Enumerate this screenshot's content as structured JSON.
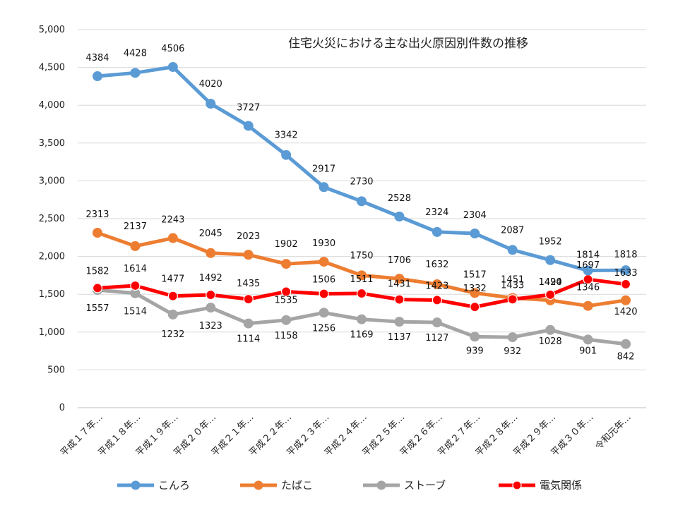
{
  "chart_data": {
    "type": "line",
    "title": "住宅火災における主な出火原因別件数の推移",
    "categories": [
      "平成１７年…",
      "平成１８年…",
      "平成１９年…",
      "平成２０年…",
      "平成２１年…",
      "平成２２年…",
      "平成２３年…",
      "平成２４年…",
      "平成２５年…",
      "平成２６年…",
      "平成２７年…",
      "平成２８年…",
      "平成２９年…",
      "平成３０年…",
      "令和元年…"
    ],
    "ylim": [
      0,
      5000
    ],
    "yticks": [
      "0",
      "500",
      "1,000",
      "1,500",
      "2,000",
      "2,500",
      "3,000",
      "3,500",
      "4,000",
      "4,500",
      "5,000"
    ],
    "grid": true,
    "legend_position": "bottom",
    "series": [
      {
        "name": "こんろ",
        "color": "#5b9bd5",
        "values": [
          4384,
          4428,
          4506,
          4020,
          3727,
          3342,
          2917,
          2730,
          2528,
          2324,
          2304,
          2087,
          1952,
          1814,
          1818
        ],
        "labels": [
          "4384",
          "4428",
          "4506",
          "4020",
          "3727",
          "3342",
          "2917",
          "2730",
          "2528",
          "2324",
          "2304",
          "2087",
          "1952",
          "1814",
          "1818"
        ]
      },
      {
        "name": "たばこ",
        "color": "#ed7d31",
        "values": [
          2313,
          2137,
          2243,
          2045,
          2023,
          1902,
          1930,
          1750,
          1706,
          1632,
          1517,
          1451,
          1420,
          1346,
          1420
        ],
        "labels": [
          "2313",
          "2137",
          "2243",
          "2045",
          "2023",
          "1902",
          "1930",
          "1750",
          "1706",
          "1632",
          "1517",
          "1451",
          "1420",
          "1346",
          "1420"
        ]
      },
      {
        "name": "ストーブ",
        "color": "#a5a5a5",
        "values": [
          1557,
          1514,
          1232,
          1323,
          1114,
          1158,
          1256,
          1169,
          1137,
          1127,
          939,
          932,
          1028,
          901,
          842
        ],
        "labels": [
          "1557",
          "1514",
          "1232",
          "1323",
          "1114",
          "1158",
          "1256",
          "1169",
          "1137",
          "1127",
          "939",
          "932",
          "1028",
          "901",
          "842"
        ]
      },
      {
        "name": "電気関係",
        "color": "#ff0000",
        "values": [
          1582,
          1614,
          1477,
          1492,
          1435,
          1535,
          1506,
          1511,
          1431,
          1423,
          1332,
          1433,
          1494,
          1697,
          1633
        ],
        "labels": [
          "1582",
          "1614",
          "1477",
          "1492",
          "1435",
          "1535",
          "1506",
          "1511",
          "1431",
          "1423",
          "1332",
          "1433",
          "1494",
          "1697",
          "1633"
        ]
      }
    ]
  }
}
